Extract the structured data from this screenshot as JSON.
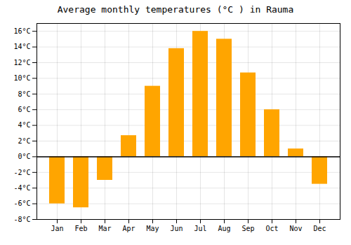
{
  "chart_data": {
    "type": "bar",
    "title": "Average monthly temperatures (°C ) in Rauma",
    "categories": [
      "Jan",
      "Feb",
      "Mar",
      "Apr",
      "May",
      "Jun",
      "Jul",
      "Aug",
      "Sep",
      "Oct",
      "Nov",
      "Dec"
    ],
    "values": [
      -6.0,
      -6.5,
      -3.0,
      2.7,
      9.0,
      13.8,
      16.0,
      15.0,
      10.7,
      6.0,
      1.0,
      -3.5
    ],
    "color": "#FFA500",
    "ylim": [
      -8,
      17
    ],
    "yticks": [
      {
        "value": -8,
        "label": "-8°C"
      },
      {
        "value": -6,
        "label": "-6°C"
      },
      {
        "value": -4,
        "label": "-4°C"
      },
      {
        "value": -2,
        "label": "-2°C"
      },
      {
        "value": 0,
        "label": "0°C"
      },
      {
        "value": 2,
        "label": "2°C"
      },
      {
        "value": 4,
        "label": "4°C"
      },
      {
        "value": 6,
        "label": "6°C"
      },
      {
        "value": 8,
        "label": "8°C"
      },
      {
        "value": 10,
        "label": "10°C"
      },
      {
        "value": 12,
        "label": "12°C"
      },
      {
        "value": 14,
        "label": "14°C"
      },
      {
        "value": 16,
        "label": "16°C"
      }
    ],
    "grid": true
  }
}
